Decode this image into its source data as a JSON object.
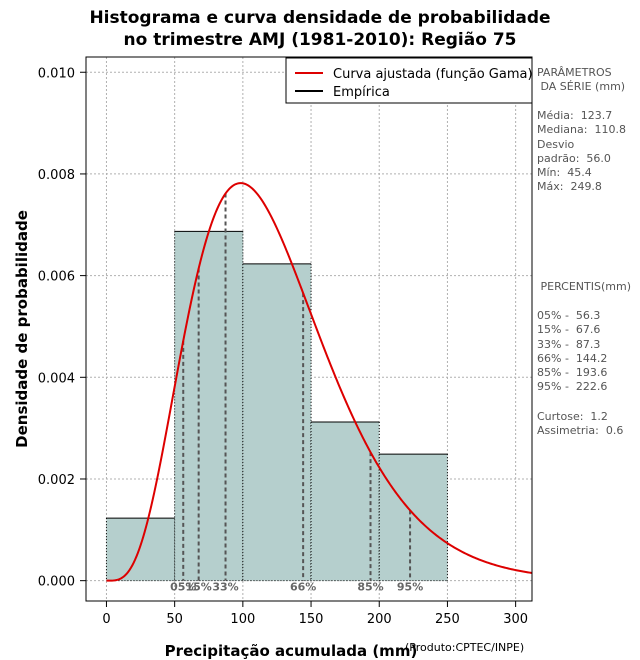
{
  "title_line1": "Histograma e curva densidade de probabilidade",
  "title_line2": "no trimestre AMJ (1981-2010): Região 75",
  "credit": "(Produto:CPTEC/INPE)",
  "colors": {
    "bar_fill": "#b5cfcd",
    "curve": "#dd0000",
    "grid": "#b0b0b0",
    "percentile_line": "#555555"
  },
  "side_panel": {
    "params_title_1": "PARÂMETROS",
    "params_title_2": " DA SÉRIE (mm)",
    "stats": [
      "Média:  123.7",
      "Mediana:  110.8",
      "Desvio",
      "padrão:  56.0",
      "Mín:  45.4",
      "Máx:  249.8"
    ],
    "pct_title": " PERCENTIS(mm)",
    "percentis": [
      "05% -  56.3",
      "15% -  67.6",
      "33% -  87.3",
      "66% -  144.2",
      "85% -  193.6",
      "95% -  222.6"
    ],
    "shape": [
      "Curtose:  1.2",
      "Assimetria:  0.6"
    ]
  },
  "chart_data": {
    "type": "bar",
    "title": "Histograma e curva densidade de probabilidade no trimestre AMJ (1981-2010): Região 75",
    "xlabel": "Precipitação acumulada (mm)",
    "ylabel": "Densidade de probabilidade",
    "xlim": [
      -15,
      312
    ],
    "ylim": [
      -0.0004,
      0.0103
    ],
    "x_ticks": [
      0,
      50,
      100,
      150,
      200,
      250,
      300
    ],
    "y_ticks": [
      0.0,
      0.002,
      0.004,
      0.006,
      0.008,
      0.01
    ],
    "y_tick_labels": [
      "0.000",
      "0.002",
      "0.004",
      "0.006",
      "0.008",
      "0.010"
    ],
    "bins": [
      {
        "x0": 0,
        "x1": 50,
        "density": 0.00123
      },
      {
        "x0": 50,
        "x1": 100,
        "density": 0.00687
      },
      {
        "x0": 100,
        "x1": 150,
        "density": 0.00623
      },
      {
        "x0": 150,
        "x1": 200,
        "density": 0.00312
      },
      {
        "x0": 200,
        "x1": 250,
        "density": 0.00249
      }
    ],
    "gamma_fit": {
      "shape": 4.88,
      "scale": 25.35
    },
    "percentiles": [
      {
        "label": "05%",
        "value": 56.3
      },
      {
        "label": "15%",
        "value": 67.6
      },
      {
        "label": "33%",
        "value": 87.3
      },
      {
        "label": "66%",
        "value": 144.2
      },
      {
        "label": "85%",
        "value": 193.6
      },
      {
        "label": "95%",
        "value": 222.6
      }
    ],
    "legend": {
      "position": "top-right",
      "entries": [
        {
          "label": "Curva ajustada (função Gama)",
          "color": "#dd0000"
        },
        {
          "label": "Empírica",
          "color": "#000000"
        }
      ]
    },
    "grid": true
  }
}
